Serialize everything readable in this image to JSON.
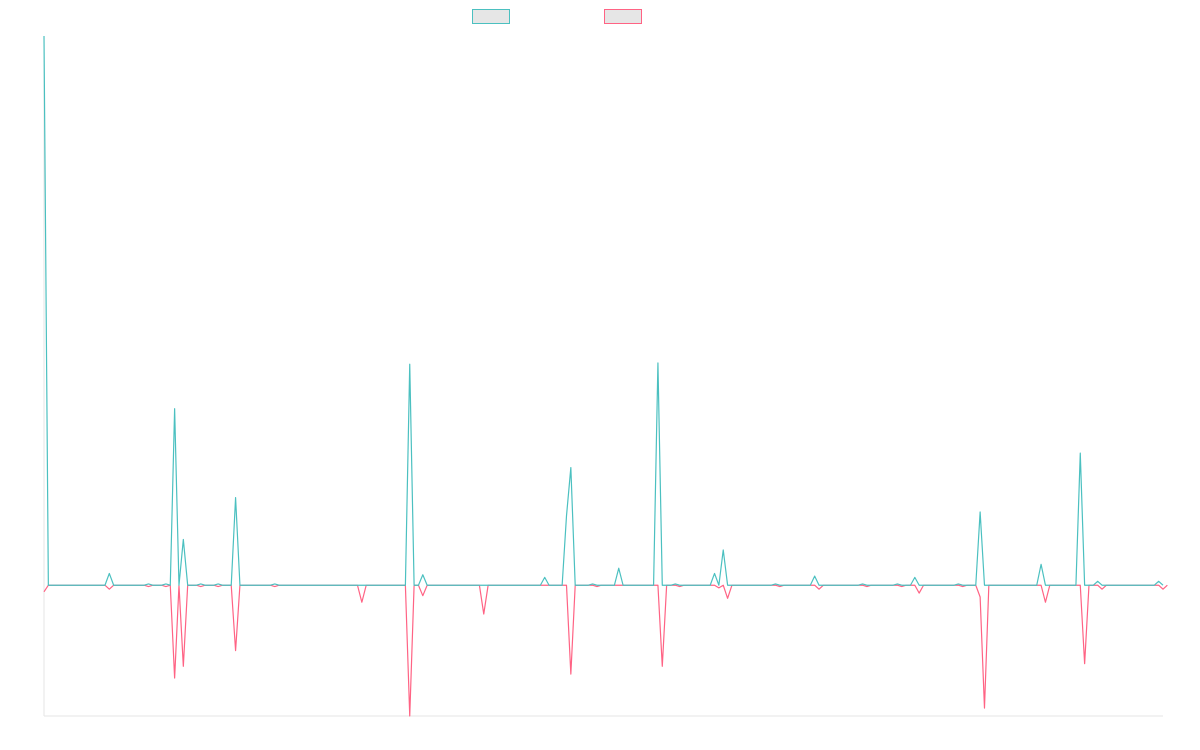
{
  "chart_data": {
    "type": "line",
    "title": "",
    "xlabel": "",
    "ylabel": "",
    "grid": false,
    "legend_position": "top-center",
    "ylim": [
      -100,
      420
    ],
    "series": [
      {
        "name": "",
        "color": "#4bc0c0",
        "values": [
          420,
          0,
          0,
          0,
          0,
          0,
          0,
          0,
          0,
          0,
          0,
          0,
          0,
          0,
          0,
          9,
          0,
          0,
          0,
          0,
          0,
          0,
          0,
          0,
          1,
          0,
          0,
          0,
          1,
          0,
          135,
          0,
          35,
          0,
          0,
          0,
          1,
          0,
          0,
          0,
          1,
          0,
          0,
          0,
          67,
          0,
          0,
          0,
          0,
          0,
          0,
          0,
          0,
          1,
          0,
          0,
          0,
          0,
          0,
          0,
          0,
          0,
          0,
          0,
          0,
          0,
          0,
          0,
          0,
          0,
          0,
          0,
          0,
          0,
          0,
          0,
          0,
          0,
          0,
          0,
          0,
          0,
          0,
          0,
          169,
          0,
          0,
          8,
          0,
          0,
          0,
          0,
          0,
          0,
          0,
          0,
          0,
          0,
          0,
          0,
          0,
          0,
          0,
          0,
          0,
          0,
          0,
          0,
          0,
          0,
          0,
          0,
          0,
          0,
          0,
          6,
          0,
          0,
          0,
          0,
          53,
          90,
          0,
          0,
          0,
          0,
          1,
          0,
          0,
          0,
          0,
          0,
          13,
          0,
          0,
          0,
          0,
          0,
          0,
          0,
          0,
          170,
          0,
          0,
          0,
          1,
          0,
          0,
          0,
          0,
          0,
          0,
          0,
          0,
          9,
          0,
          27,
          0,
          0,
          0,
          0,
          0,
          0,
          0,
          0,
          0,
          0,
          0,
          1,
          0,
          0,
          0,
          0,
          0,
          0,
          0,
          0,
          7,
          0,
          0,
          0,
          0,
          0,
          0,
          0,
          0,
          0,
          0,
          1,
          0,
          0,
          0,
          0,
          0,
          0,
          0,
          1,
          0,
          0,
          0,
          6,
          0,
          0,
          0,
          0,
          0,
          0,
          0,
          0,
          0,
          1,
          0,
          0,
          0,
          0,
          56,
          0,
          0,
          0,
          0,
          0,
          0,
          0,
          0,
          0,
          0,
          0,
          0,
          0,
          16,
          0,
          0,
          0,
          0,
          0,
          0,
          0,
          0,
          101,
          0,
          0,
          0,
          3,
          0,
          0,
          0,
          0,
          0,
          0,
          0,
          0,
          0,
          0,
          0,
          0,
          0,
          3,
          0
        ]
      },
      {
        "name": "",
        "color": "#ff6384",
        "values": [
          -5,
          0,
          0,
          0,
          0,
          0,
          0,
          0,
          0,
          0,
          0,
          0,
          0,
          0,
          0,
          -3,
          0,
          0,
          0,
          0,
          0,
          0,
          0,
          0,
          -1,
          0,
          0,
          0,
          -1,
          0,
          -71,
          0,
          -62,
          0,
          0,
          0,
          -1,
          0,
          0,
          0,
          -1,
          0,
          0,
          0,
          -50,
          0,
          0,
          0,
          0,
          0,
          0,
          0,
          0,
          -1,
          0,
          0,
          0,
          0,
          0,
          0,
          0,
          0,
          0,
          0,
          0,
          0,
          0,
          0,
          0,
          0,
          0,
          0,
          0,
          -13,
          0,
          0,
          0,
          0,
          0,
          0,
          0,
          0,
          0,
          0,
          -100,
          0,
          0,
          -8,
          0,
          0,
          0,
          0,
          0,
          0,
          0,
          0,
          0,
          0,
          0,
          0,
          0,
          -22,
          0,
          0,
          0,
          0,
          0,
          0,
          0,
          0,
          0,
          0,
          0,
          0,
          0,
          0,
          0,
          0,
          0,
          0,
          0,
          -68,
          0,
          0,
          0,
          0,
          0,
          -1,
          0,
          0,
          0,
          0,
          0,
          0,
          0,
          0,
          0,
          0,
          0,
          0,
          0,
          0,
          -62,
          0,
          0,
          0,
          -1,
          0,
          0,
          0,
          0,
          0,
          0,
          0,
          0,
          -2,
          0,
          -10,
          0,
          0,
          0,
          0,
          0,
          0,
          0,
          0,
          0,
          0,
          0,
          -1,
          0,
          0,
          0,
          0,
          0,
          0,
          0,
          0,
          -3,
          0,
          0,
          0,
          0,
          0,
          0,
          0,
          0,
          0,
          0,
          -1,
          0,
          0,
          0,
          0,
          0,
          0,
          0,
          -1,
          0,
          0,
          0,
          -6,
          0,
          0,
          0,
          0,
          0,
          0,
          0,
          0,
          0,
          -1,
          0,
          0,
          0,
          -9,
          -94,
          0,
          0,
          0,
          0,
          0,
          0,
          0,
          0,
          0,
          0,
          0,
          0,
          0,
          -13,
          0,
          0,
          0,
          0,
          0,
          0,
          0,
          0,
          -60,
          0,
          0,
          0,
          -3,
          0,
          0,
          0,
          0,
          0,
          0,
          0,
          0,
          0,
          0,
          0,
          0,
          0,
          -3,
          0
        ]
      }
    ]
  }
}
